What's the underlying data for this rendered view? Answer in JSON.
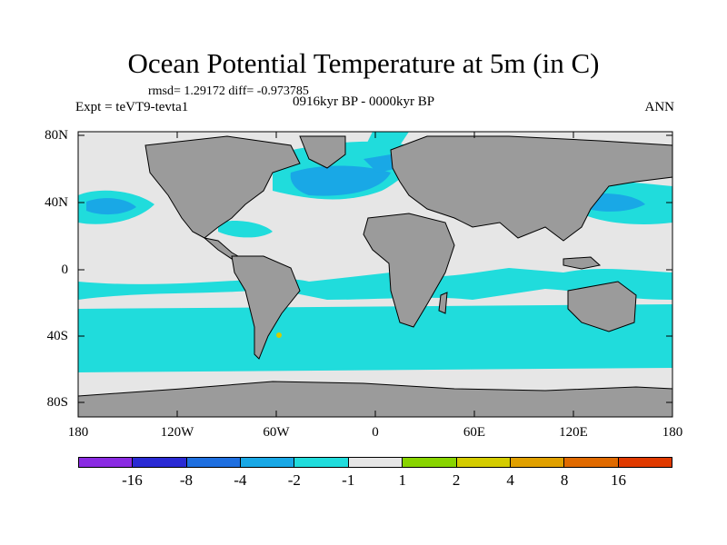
{
  "title": "Ocean Potential Temperature at 5m (in C)",
  "stats": "rmsd= 1.29172 diff= -0.973785",
  "experiment": "Expt = teVT9-tevta1",
  "period": "0916kyr BP - 0000kyr BP",
  "season": "ANN",
  "lat_labels": [
    "80N",
    "40N",
    "0",
    "40S",
    "80S"
  ],
  "lon_labels": [
    "180",
    "120W",
    "60W",
    "0",
    "60E",
    "120E",
    "180"
  ],
  "colorbar": {
    "colors": [
      "#8a2be2",
      "#2a2ad4",
      "#1e6fe0",
      "#19a8e6",
      "#20dcdc",
      "#e6e6e6",
      "#88d400",
      "#d4cc00",
      "#e0a000",
      "#e06a00",
      "#e03a00"
    ],
    "labels": [
      "-16",
      "-8",
      "-4",
      "-2",
      "-1",
      "1",
      "2",
      "4",
      "8",
      "16"
    ]
  },
  "colors": {
    "land": "#9b9b9b",
    "neutral": "#e6e6e6",
    "cool1": "#20dcdc",
    "cool2": "#19a8e6",
    "cool3": "#1e6fe0",
    "warm": "#d4cc00"
  }
}
